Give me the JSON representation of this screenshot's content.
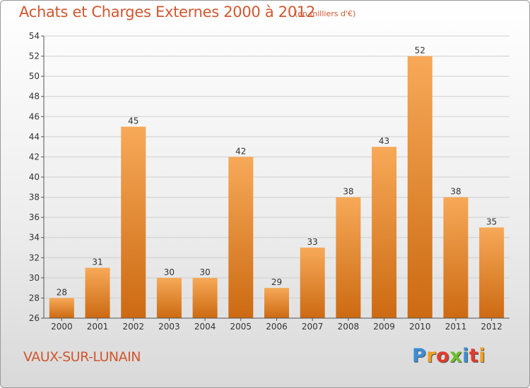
{
  "title": "Achats et Charges Externes 2000 à 2012",
  "subtitle": "(en milliers d'€)",
  "commune": "VAUX-SUR-LUNAIN",
  "logo": {
    "letters": [
      "P",
      "r",
      "o",
      "x",
      "i",
      "t",
      "i"
    ],
    "colors": [
      "#3a8fd8",
      "#f0a020",
      "#e23b2b",
      "#6bbf2a",
      "#3a8fd8",
      "#e23b2b",
      "#f0a020"
    ]
  },
  "colors": {
    "bar_light": "#f7a958",
    "bar_dark": "#cc6a12",
    "title": "#d2562e"
  },
  "chart_data": {
    "type": "bar",
    "title": "Achats et Charges Externes 2000 à 2012",
    "categories": [
      "2000",
      "2001",
      "2002",
      "2003",
      "2004",
      "2005",
      "2006",
      "2007",
      "2008",
      "2009",
      "2010",
      "2011",
      "2012"
    ],
    "values": [
      28,
      31,
      45,
      30,
      30,
      42,
      29,
      33,
      38,
      43,
      52,
      38,
      35
    ],
    "ylim": [
      26,
      54
    ],
    "yticks": [
      26,
      28,
      30,
      32,
      34,
      36,
      38,
      40,
      42,
      44,
      46,
      48,
      50,
      52,
      54
    ],
    "xlabel": "",
    "ylabel": "",
    "grid": true
  }
}
